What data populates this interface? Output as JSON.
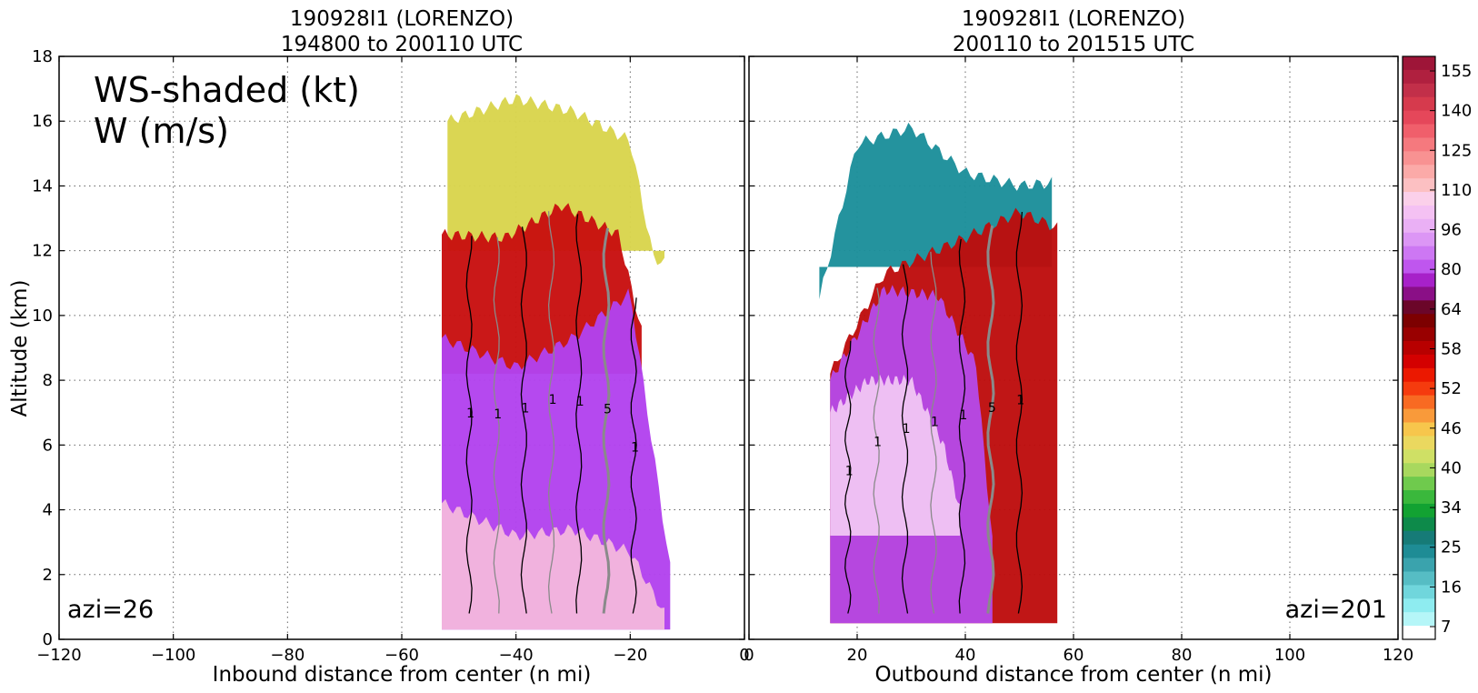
{
  "chart_data": [
    {
      "type": "heatmap",
      "title_line1": "190928I1 (LORENZO)",
      "title_line2": "194800 to 200110 UTC",
      "xlabel": "Inbound distance from center (n mi)",
      "ylabel": "Altitude (km)",
      "xlim": [
        -120,
        0
      ],
      "ylim": [
        0,
        18
      ],
      "xticks": [
        -120,
        -100,
        -80,
        -60,
        -40,
        -20,
        0
      ],
      "yticks": [
        0,
        2,
        4,
        6,
        8,
        10,
        12,
        14,
        16,
        18
      ],
      "grid": true,
      "annotation_main": [
        "WS-shaded (kt)",
        "W (m/s)"
      ],
      "annotation_azi": "azi=26",
      "contour_label": "1",
      "contour_label_strong": "5",
      "layers": [
        {
          "name": "top",
          "x": [
            -52,
            -40,
            -30,
            -20,
            -16,
            -14
          ],
          "ytop": [
            16.0,
            16.7,
            16.3,
            15.4,
            11.8,
            11.6
          ],
          "ybot": 12.0,
          "color": "#d8d44c"
        },
        {
          "name": "red",
          "x": [
            -53,
            -42,
            -32,
            -22,
            -18
          ],
          "ytop": [
            12.5,
            12.4,
            13.4,
            12.5,
            9.5
          ],
          "ybot": 8.2,
          "color": "#c80f0f"
        },
        {
          "name": "purple",
          "x": [
            -53,
            -40,
            -30,
            -20,
            -13
          ],
          "ytop": [
            9.3,
            8.4,
            9.3,
            10.7,
            2.2
          ],
          "ybot": 0.3,
          "color": "#b242ee"
        },
        {
          "name": "light",
          "x": [
            -53,
            -40,
            -30,
            -20,
            -14
          ],
          "ytop": [
            4.2,
            3.2,
            3.4,
            2.7,
            0.8
          ],
          "ybot": 0.3,
          "color": "#f4b6dd"
        }
      ]
    },
    {
      "type": "heatmap",
      "title_line1": "190928I1 (LORENZO)",
      "title_line2": "200110 to 201515 UTC",
      "xlabel": "Outbound distance from center (n mi)",
      "xlim": [
        0,
        120
      ],
      "ylim": [
        0,
        18
      ],
      "xticks": [
        0,
        20,
        40,
        60,
        80,
        100,
        120
      ],
      "yticks": [
        0,
        2,
        4,
        6,
        8,
        10,
        12,
        14,
        16,
        18
      ],
      "grid": true,
      "annotation_azi": "azi=201",
      "contour_label": "1",
      "contour_label_strong": "5",
      "layers": [
        {
          "name": "teal",
          "x": [
            13,
            20,
            30,
            40,
            50,
            56
          ],
          "ytop": [
            10.5,
            15.3,
            15.8,
            14.4,
            14.0,
            14.1
          ],
          "ybot": 11.5,
          "color": "#1b8f9a"
        },
        {
          "name": "red",
          "x": [
            15,
            25,
            40,
            50,
            57
          ],
          "ytop": [
            8.2,
            11.3,
            12.4,
            13.2,
            12.7
          ],
          "ybot": 0.5,
          "color": "#bd0d0d"
        },
        {
          "name": "purple",
          "x": [
            15,
            25,
            35,
            42,
            45
          ],
          "ytop": [
            8.0,
            10.8,
            10.6,
            8.5,
            3.0
          ],
          "ybot": 0.5,
          "color": "#b54ae8"
        },
        {
          "name": "light",
          "x": [
            15,
            22,
            30,
            36,
            39
          ],
          "ytop": [
            7.0,
            8.0,
            8.0,
            6.0,
            4.0
          ],
          "ybot": 3.2,
          "color": "#f0c4f4"
        }
      ]
    }
  ],
  "colorbar": {
    "labels": [
      "155",
      "140",
      "125",
      "110",
      "96",
      "80",
      "64",
      "58",
      "52",
      "46",
      "40",
      "34",
      "25",
      "16",
      "7"
    ],
    "colors_top_to_bottom": [
      "#9e1538",
      "#b0203f",
      "#c22f49",
      "#d63a4d",
      "#e5475a",
      "#f05f6b",
      "#f5797e",
      "#f89292",
      "#fbaaa8",
      "#fcc0c2",
      "#fbd0ea",
      "#f4c1f3",
      "#eab0f5",
      "#dc96f5",
      "#cd77f3",
      "#bf56ee",
      "#a721c9",
      "#8a0f86",
      "#6b0629",
      "#7d0000",
      "#990000",
      "#b80000",
      "#d40000",
      "#eb1800",
      "#f53b0e",
      "#f86a22",
      "#f99a3a",
      "#f7c64c",
      "#ead85f",
      "#cfe065",
      "#a8d85e",
      "#6fca4d",
      "#3ab83c",
      "#12a232",
      "#0d8a4a",
      "#167b77",
      "#1e8c95",
      "#3aa3ad",
      "#56bdc4",
      "#70d6dc",
      "#8eecf0",
      "#b5f6f8",
      "#ffffff"
    ]
  }
}
